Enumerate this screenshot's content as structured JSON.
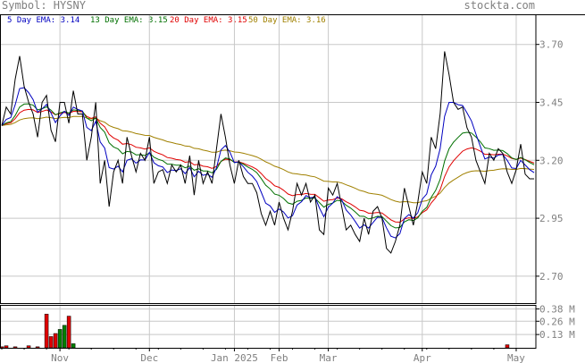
{
  "header": {
    "symbol": "Symbol: HYSNY",
    "site": "stockta.com"
  },
  "legend": [
    {
      "label": "5 Day EMA: 3.14",
      "color": "#0000c0"
    },
    {
      "label": "13 Day EMA: 3.15",
      "color": "#007000"
    },
    {
      "label": "20 Day EMA: 3.15",
      "color": "#e00000"
    },
    {
      "label": "50 Day EMA: 3.16",
      "color": "#a08000"
    }
  ],
  "chart_data": {
    "type": "line",
    "price_axis": {
      "ticks": [
        "3.70",
        "3.45",
        "3.20",
        "2.95",
        "2.70"
      ],
      "values": [
        3.7,
        3.45,
        3.2,
        2.95,
        2.7
      ],
      "ylim": [
        2.58,
        3.83
      ]
    },
    "volume_axis": {
      "ticks": [
        "0.38 M",
        "0.26 M",
        "0.13 M"
      ],
      "values": [
        0.38,
        0.26,
        0.13
      ],
      "ylim": [
        0,
        0.42
      ]
    },
    "x_labels": [
      "Nov",
      "Dec",
      "Jan 2025",
      "Feb",
      "Mar",
      "Apr",
      "May"
    ],
    "x_label_index": [
      13,
      33,
      52,
      62,
      73,
      94,
      115
    ],
    "num_points": 120,
    "grid": true,
    "series": [
      {
        "name": "Close",
        "color": "#000000",
        "key": "close"
      },
      {
        "name": "5 Day EMA",
        "color": "#0000c0",
        "key": "ema5"
      },
      {
        "name": "13 Day EMA",
        "color": "#007000",
        "key": "ema13"
      },
      {
        "name": "20 Day EMA",
        "color": "#e00000",
        "key": "ema20"
      },
      {
        "name": "50 Day EMA",
        "color": "#a08000",
        "key": "ema50"
      }
    ],
    "close": [
      3.35,
      3.43,
      3.4,
      3.55,
      3.65,
      3.52,
      3.45,
      3.4,
      3.3,
      3.45,
      3.48,
      3.33,
      3.28,
      3.45,
      3.45,
      3.36,
      3.5,
      3.4,
      3.4,
      3.2,
      3.3,
      3.45,
      3.1,
      3.2,
      3.0,
      3.15,
      3.2,
      3.1,
      3.3,
      3.22,
      3.15,
      3.23,
      3.2,
      3.3,
      3.1,
      3.15,
      3.16,
      3.1,
      3.18,
      3.15,
      3.18,
      3.1,
      3.22,
      3.05,
      3.2,
      3.1,
      3.15,
      3.1,
      3.25,
      3.4,
      3.3,
      3.18,
      3.1,
      3.2,
      3.13,
      3.1,
      3.1,
      3.06,
      2.97,
      2.92,
      2.98,
      2.92,
      3.02,
      2.95,
      2.9,
      2.98,
      3.1,
      3.05,
      3.1,
      3.02,
      3.05,
      2.9,
      2.88,
      3.08,
      3.05,
      3.1,
      3.0,
      2.9,
      2.92,
      2.88,
      2.85,
      2.95,
      2.88,
      2.98,
      3.0,
      2.95,
      2.82,
      2.8,
      2.85,
      2.92,
      3.08,
      3.0,
      2.92,
      3.02,
      3.15,
      3.1,
      3.3,
      3.25,
      3.4,
      3.67,
      3.57,
      3.45,
      3.42,
      3.43,
      3.34,
      3.3,
      3.2,
      3.15,
      3.1,
      3.23,
      3.2,
      3.25,
      3.23,
      3.15,
      3.1,
      3.16,
      3.27,
      3.14,
      3.12,
      3.12
    ],
    "volume": [
      0.01,
      0.02,
      0.0,
      0.01,
      0.0,
      0.0,
      0.02,
      0.0,
      0.01,
      0.0,
      0.33,
      0.11,
      0.14,
      0.18,
      0.22,
      0.31,
      0.04,
      0.0,
      0.0,
      0.0,
      0.0,
      0.0,
      0.0,
      0.0,
      0.0,
      0.0,
      0.0,
      0.0,
      0.0,
      0.0,
      0.0,
      0.0,
      0.0,
      0.0,
      0.0,
      0.0,
      0.0,
      0.0,
      0.0,
      0.0,
      0.0,
      0.0,
      0.0,
      0.0,
      0.0,
      0.0,
      0.0,
      0.0,
      0.0,
      0.0,
      0.0,
      0.0,
      0.0,
      0.0,
      0.0,
      0.0,
      0.0,
      0.0,
      0.0,
      0.0,
      0.0,
      0.0,
      0.0,
      0.0,
      0.0,
      0.0,
      0.0,
      0.0,
      0.0,
      0.0,
      0.0,
      0.0,
      0.0,
      0.0,
      0.0,
      0.0,
      0.0,
      0.0,
      0.0,
      0.0,
      0.0,
      0.0,
      0.0,
      0.0,
      0.0,
      0.0,
      0.0,
      0.0,
      0.0,
      0.0,
      0.0,
      0.0,
      0.0,
      0.0,
      0.0,
      0.0,
      0.0,
      0.0,
      0.0,
      0.0,
      0.0,
      0.0,
      0.0,
      0.0,
      0.0,
      0.0,
      0.0,
      0.0,
      0.0,
      0.0,
      0.0,
      0.0,
      0.0,
      0.03,
      0.0,
      0.0,
      0.0,
      0.0,
      0.0,
      0.0
    ],
    "volume_up": [
      false,
      false,
      false,
      false,
      false,
      false,
      false,
      false,
      false,
      false,
      false,
      false,
      false,
      true,
      true,
      false,
      true,
      false,
      false,
      false,
      false,
      false,
      false,
      false,
      false,
      false,
      false,
      false,
      false,
      false,
      false,
      false,
      false,
      false,
      false,
      false,
      false,
      false,
      false,
      false,
      false,
      false,
      false,
      false,
      false,
      false,
      false,
      false,
      false,
      false,
      false,
      false,
      false,
      false,
      false,
      false,
      false,
      false,
      false,
      false,
      false,
      false,
      false,
      false,
      false,
      false,
      false,
      false,
      false,
      false,
      false,
      false,
      false,
      false,
      false,
      false,
      false,
      false,
      false,
      false,
      false,
      false,
      false,
      false,
      false,
      false,
      false,
      false,
      false,
      false,
      false,
      false,
      false,
      false,
      false,
      false,
      false,
      false,
      false,
      false,
      false,
      false,
      false,
      false,
      false,
      false,
      false,
      false,
      false,
      false,
      false,
      false,
      false,
      false,
      false,
      false,
      false,
      false,
      false,
      false
    ]
  }
}
